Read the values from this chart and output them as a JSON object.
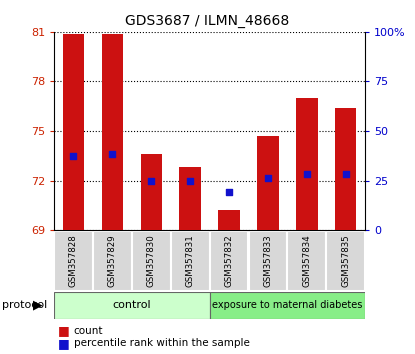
{
  "title": "GDS3687 / ILMN_48668",
  "samples": [
    "GSM357828",
    "GSM357829",
    "GSM357830",
    "GSM357831",
    "GSM357832",
    "GSM357833",
    "GSM357834",
    "GSM357835"
  ],
  "counts": [
    80.85,
    80.9,
    73.6,
    72.8,
    70.2,
    74.7,
    77.0,
    76.4
  ],
  "percentile_ranks": [
    73.5,
    73.6,
    72.0,
    72.0,
    71.3,
    72.15,
    72.4,
    72.4
  ],
  "y_min": 69,
  "y_max": 81,
  "y_ticks": [
    69,
    72,
    75,
    78,
    81
  ],
  "right_y_ticks": [
    0,
    25,
    50,
    75,
    100
  ],
  "right_y_tick_labels": [
    "0",
    "25",
    "50",
    "75",
    "100%"
  ],
  "bar_color": "#cc1111",
  "dot_color": "#1111cc",
  "bar_width": 0.55,
  "control_label": "control",
  "diabetes_label": "exposure to maternal diabetes",
  "protocol_label": "protocol",
  "control_color": "#ccffcc",
  "diabetes_color": "#88ee88",
  "legend_count_label": "count",
  "legend_percentile_label": "percentile rank within the sample",
  "tick_color_left": "#cc2200",
  "tick_color_right": "#0000cc"
}
